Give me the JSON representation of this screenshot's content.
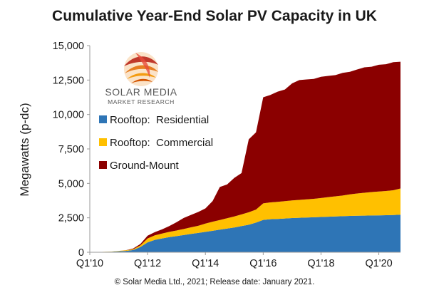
{
  "chart_data": {
    "type": "area",
    "title": "Cumulative Year-End Solar PV Capacity in UK",
    "ylabel": "Megawatts (p-dc)",
    "xlabel": "",
    "ylim": [
      0,
      15000
    ],
    "y_ticks": [
      "0",
      "2,500",
      "5,000",
      "7,500",
      "10,000",
      "12,500",
      "15,000"
    ],
    "x_ticks": [
      "Q1'10",
      "Q1'12",
      "Q1'14",
      "Q1'16",
      "Q1'18",
      "Q1'20"
    ],
    "stacked": true,
    "grid": false,
    "legend_position": "left",
    "x": [
      "Q1'10",
      "Q2'10",
      "Q3'10",
      "Q4'10",
      "Q1'11",
      "Q2'11",
      "Q3'11",
      "Q4'11",
      "Q1'12",
      "Q2'12",
      "Q3'12",
      "Q4'12",
      "Q1'13",
      "Q2'13",
      "Q3'13",
      "Q4'13",
      "Q1'14",
      "Q2'14",
      "Q3'14",
      "Q4'14",
      "Q1'15",
      "Q2'15",
      "Q3'15",
      "Q4'15",
      "Q1'16",
      "Q2'16",
      "Q3'16",
      "Q4'16",
      "Q1'17",
      "Q2'17",
      "Q3'17",
      "Q4'17",
      "Q1'18",
      "Q2'18",
      "Q3'18",
      "Q4'18",
      "Q1'19",
      "Q2'19",
      "Q3'19",
      "Q4'19",
      "Q1'20",
      "Q2'20",
      "Q3'20",
      "Q4'20"
    ],
    "series": [
      {
        "name": "Rooftop:  Residential",
        "color": "#2e75b6",
        "values": [
          0,
          10,
          25,
          40,
          70,
          100,
          160,
          380,
          720,
          900,
          1000,
          1100,
          1170,
          1250,
          1330,
          1400,
          1480,
          1560,
          1640,
          1720,
          1800,
          1900,
          2000,
          2150,
          2350,
          2400,
          2420,
          2450,
          2480,
          2500,
          2520,
          2540,
          2560,
          2580,
          2600,
          2620,
          2640,
          2650,
          2660,
          2670,
          2680,
          2690,
          2700,
          2730
        ]
      },
      {
        "name": "Rooftop:  Commercial",
        "color": "#ffc000",
        "values": [
          0,
          5,
          10,
          15,
          30,
          40,
          60,
          120,
          280,
          330,
          360,
          380,
          410,
          440,
          480,
          520,
          600,
          660,
          700,
          750,
          800,
          850,
          900,
          950,
          1200,
          1220,
          1240,
          1260,
          1280,
          1300,
          1320,
          1340,
          1380,
          1420,
          1460,
          1500,
          1560,
          1620,
          1660,
          1700,
          1730,
          1760,
          1800,
          1900
        ]
      },
      {
        "name": "Ground-Mount",
        "color": "#8b0000",
        "values": [
          0,
          0,
          0,
          0,
          0,
          10,
          50,
          100,
          200,
          230,
          300,
          420,
          600,
          800,
          900,
          1000,
          1100,
          1500,
          2400,
          2450,
          2800,
          3000,
          5300,
          5600,
          7700,
          7800,
          8000,
          8100,
          8500,
          8700,
          8700,
          8700,
          8800,
          8800,
          8800,
          8900,
          8900,
          9000,
          9100,
          9100,
          9200,
          9200,
          9300,
          9200
        ]
      }
    ]
  },
  "logo": {
    "line1": "SOLAR MEDIA",
    "line2": "MARKET RESEARCH"
  },
  "footer": "© Solar Media Ltd., 2021; Release date: January 2021."
}
